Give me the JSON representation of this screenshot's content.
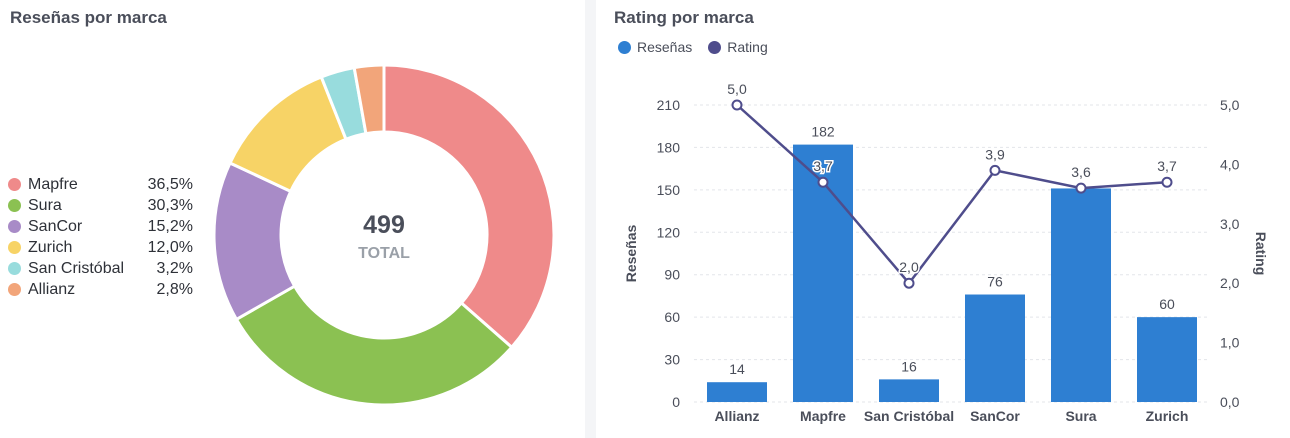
{
  "colors": {
    "reviews_bar": "#2e7fd2",
    "rating_line": "#4f4d8c"
  },
  "donut": {
    "title": "Reseñas por marca",
    "total_value": "499",
    "total_label": "TOTAL"
  },
  "combo": {
    "title": "Rating por marca",
    "legend": [
      {
        "label": "Reseñas",
        "color": "#2e7fd2"
      },
      {
        "label": "Rating",
        "color": "#4f4d8c"
      }
    ]
  },
  "chart_data": [
    {
      "type": "pie",
      "title": "Reseñas por marca",
      "donut": true,
      "center_text": [
        "499",
        "TOTAL"
      ],
      "legend_position": "left",
      "slices": [
        {
          "label": "Mapfre",
          "value": 182,
          "percent": "36,5%",
          "color": "#ef8a8a"
        },
        {
          "label": "Sura",
          "value": 151,
          "percent": "30,3%",
          "color": "#8bc152"
        },
        {
          "label": "SanCor",
          "value": 76,
          "percent": "15,2%",
          "color": "#a88bc7"
        },
        {
          "label": "Zurich",
          "value": 60,
          "percent": "12,0%",
          "color": "#f7d366"
        },
        {
          "label": "San Cristóbal",
          "value": 16,
          "percent": "3,2%",
          "color": "#98dcdd"
        },
        {
          "label": "Allianz",
          "value": 14,
          "percent": "2,8%",
          "color": "#f2a57a"
        }
      ]
    },
    {
      "type": "bar",
      "title": "Rating por marca",
      "categories": [
        "Allianz",
        "Mapfre",
        "San Cristóbal",
        "SanCor",
        "Sura",
        "Zurich"
      ],
      "ylabel": "Reseñas",
      "y2label": "Rating",
      "ylim": [
        0,
        210
      ],
      "y2lim": [
        0,
        5
      ],
      "yticks": [
        "0",
        "30",
        "60",
        "90",
        "120",
        "150",
        "180",
        "210"
      ],
      "y2ticks": [
        "0,0",
        "1,0",
        "2,0",
        "3,0",
        "4,0",
        "5,0"
      ],
      "legend_position": "top-left",
      "series": [
        {
          "name": "Reseñas",
          "type": "bar",
          "axis": "left",
          "values": [
            14,
            182,
            16,
            76,
            151,
            60
          ],
          "labels": [
            "14",
            "182",
            "16",
            "76",
            "",
            "60"
          ]
        },
        {
          "name": "Rating",
          "type": "line",
          "axis": "right",
          "values": [
            5.0,
            3.7,
            2.0,
            3.9,
            3.6,
            3.7
          ],
          "labels": [
            "5,0",
            "3,7",
            "2,0",
            "3,9",
            "3,6",
            "3,7"
          ]
        }
      ]
    }
  ]
}
